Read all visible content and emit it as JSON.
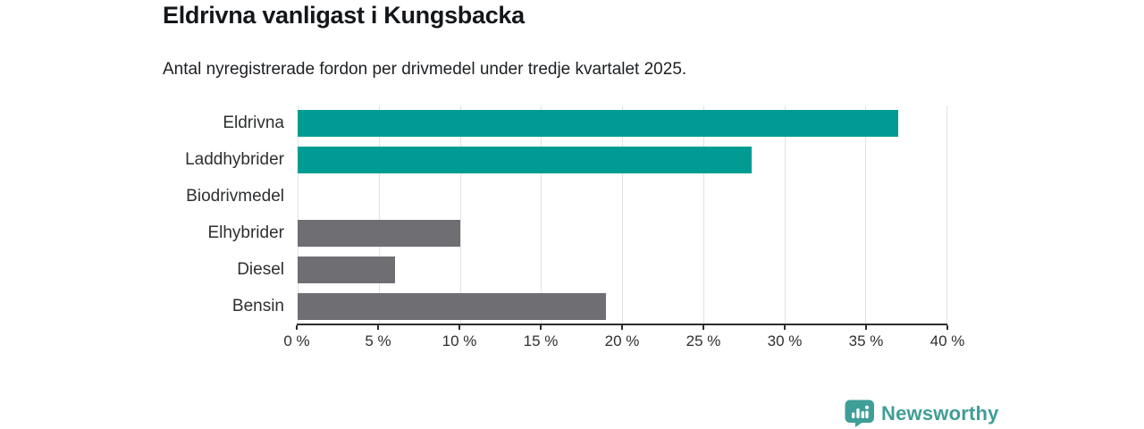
{
  "title": "Eldrivna vanligast i Kungsbacka",
  "subtitle": "Antal nyregistrerade fordon per drivmedel under tredje kvartalet 2025.",
  "chart_data": {
    "type": "bar",
    "orientation": "horizontal",
    "title": "Eldrivna vanligast i Kungsbacka",
    "subtitle": "Antal nyregistrerade fordon per drivmedel under tredje kvartalet 2025.",
    "categories": [
      "Eldrivna",
      "Laddhybrider",
      "Biodrivmedel",
      "Elhybrider",
      "Diesel",
      "Bensin"
    ],
    "values": [
      37,
      28,
      0,
      10,
      6,
      19
    ],
    "unit": "%",
    "xlim": [
      0,
      40
    ],
    "x_ticks": [
      "0 %",
      "5 %",
      "10 %",
      "15 %",
      "20 %",
      "25 %",
      "30 %",
      "35 %",
      "40 %"
    ],
    "grid": true,
    "legend": "none",
    "bar_colors": [
      "#009c94",
      "#009c94",
      "#6e6e73",
      "#6e6e73",
      "#6e6e73",
      "#6e6e73"
    ],
    "highlight_color": "#009c94",
    "default_color": "#6e6e73",
    "gridline_color": "#e2e2e2",
    "axis_color": "#2b2d2f"
  },
  "branding": {
    "logo_text": "Newsworthy",
    "logo_color": "#3f9e97",
    "logo_icon": "bar-chart-speech-bubble-icon"
  }
}
